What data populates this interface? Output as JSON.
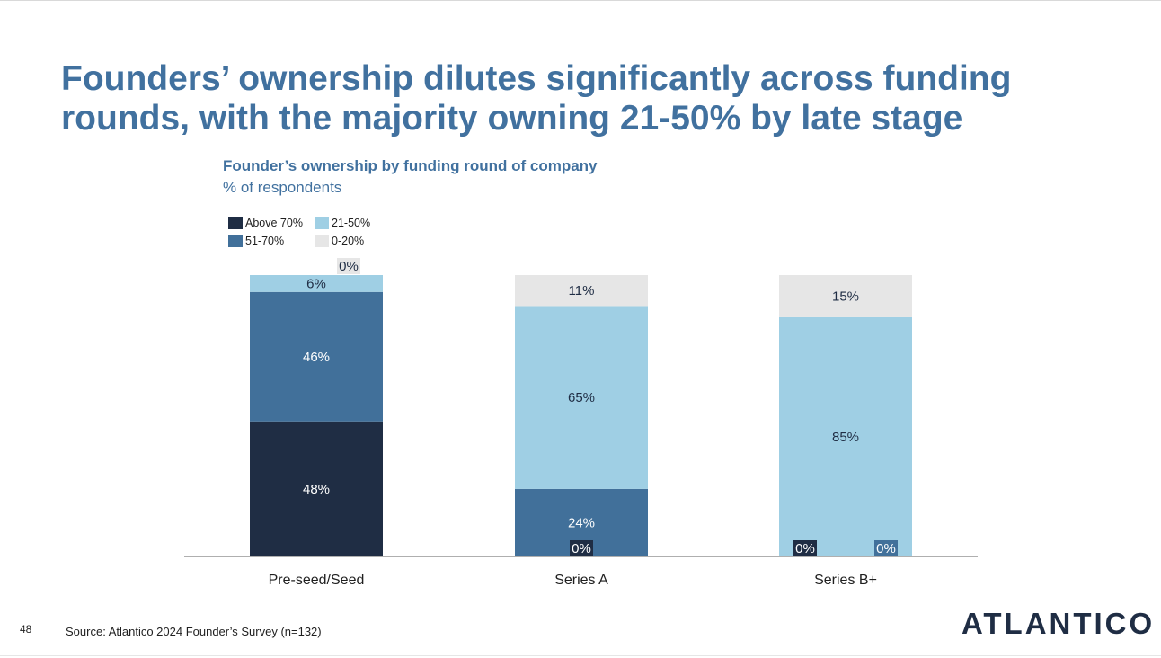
{
  "slide": {
    "title_line1": "Founders’ ownership dilutes significantly across funding",
    "title_line2": "rounds, with the majority owning 21-50% by late stage",
    "subtitle": "Founder’s ownership by funding round of company",
    "units": "% of respondents",
    "page_number": "48",
    "source": "Source: Atlantico 2024 Founder’s Survey (n=132)",
    "logo_text": "ATLANTICO"
  },
  "chart_data": {
    "type": "bar",
    "stacked": true,
    "title": "Founder’s ownership by funding round of company",
    "ylabel": "% of respondents",
    "xlabel": "",
    "ylim": [
      0,
      100
    ],
    "categories": [
      "Pre-seed/Seed",
      "Series A",
      "Series B+"
    ],
    "series": [
      {
        "name": "Above 70%",
        "color": "#1f2d44",
        "label_color": "#ffffff",
        "values": [
          48,
          0,
          0
        ],
        "labels": [
          "48%",
          "0%",
          "0%"
        ]
      },
      {
        "name": "51-70%",
        "color": "#41709a",
        "label_color": "#ffffff",
        "values": [
          46,
          24,
          0
        ],
        "labels": [
          "46%",
          "24%",
          "0%"
        ]
      },
      {
        "name": "21-50%",
        "color": "#9fcfe4",
        "label_color": "#1f2d44",
        "values": [
          6,
          65,
          85
        ],
        "labels": [
          "6%",
          "65%",
          "85%"
        ]
      },
      {
        "name": "0-20%",
        "color": "#e6e6e6",
        "label_color": "#1f2d44",
        "values": [
          0,
          11,
          15
        ],
        "labels": [
          "0%",
          "11%",
          "15%"
        ]
      }
    ],
    "legend_position": "top-left",
    "grid": false
  }
}
